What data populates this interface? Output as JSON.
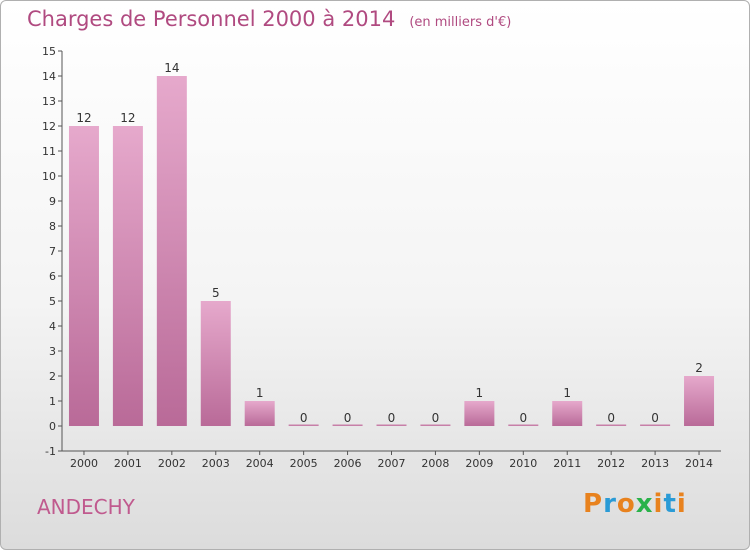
{
  "title": "Charges de Personnel 2000 à 2014",
  "subtitle": "(en milliers d'€)",
  "place": "ANDECHY",
  "logo": {
    "text": "Proxiti",
    "colors": [
      "#e8821e",
      "#2a9bd6",
      "#e8821e",
      "#2ab24a",
      "#e8821e",
      "#2a9bd6",
      "#e8821e"
    ]
  },
  "chart_data": {
    "type": "bar",
    "categories": [
      "2000",
      "2001",
      "2002",
      "2003",
      "2004",
      "2005",
      "2006",
      "2007",
      "2008",
      "2009",
      "2010",
      "2011",
      "2012",
      "2013",
      "2014"
    ],
    "values": [
      12,
      12,
      14,
      5,
      1,
      0,
      0,
      0,
      0,
      1,
      0,
      1,
      0,
      0,
      2
    ],
    "ylim": [
      -1,
      15
    ],
    "yticks": [
      -1,
      0,
      1,
      2,
      3,
      4,
      5,
      6,
      7,
      8,
      9,
      10,
      11,
      12,
      13,
      14,
      15
    ],
    "xlabel": "",
    "ylabel": "",
    "bar_color": "#d58ab4"
  }
}
